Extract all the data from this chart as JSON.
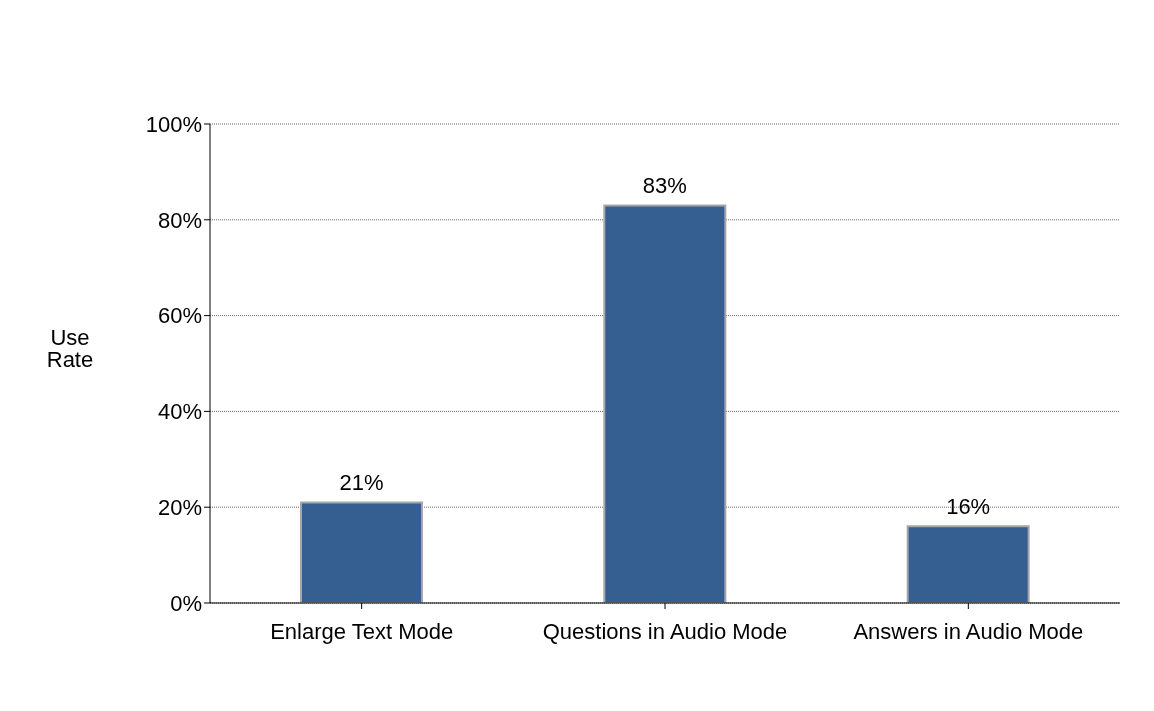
{
  "chart_data": {
    "type": "bar",
    "ylabel": "Use Rate",
    "categories": [
      "Enlarge Text Mode",
      "Questions in Audio Mode",
      "Answers in Audio Mode"
    ],
    "values": [
      21,
      83,
      16
    ],
    "color": "#365f91",
    "ylim": [
      0,
      100
    ],
    "yticks": [
      {
        "value": 0,
        "label": "0%"
      },
      {
        "value": 20,
        "label": "20%"
      },
      {
        "value": 40,
        "label": "40%"
      },
      {
        "value": 60,
        "label": "60%"
      },
      {
        "value": 80,
        "label": "80%"
      },
      {
        "value": 100,
        "label": "100%"
      }
    ],
    "value_labels": [
      "21%",
      "83%",
      "16%"
    ],
    "grid": "y"
  }
}
